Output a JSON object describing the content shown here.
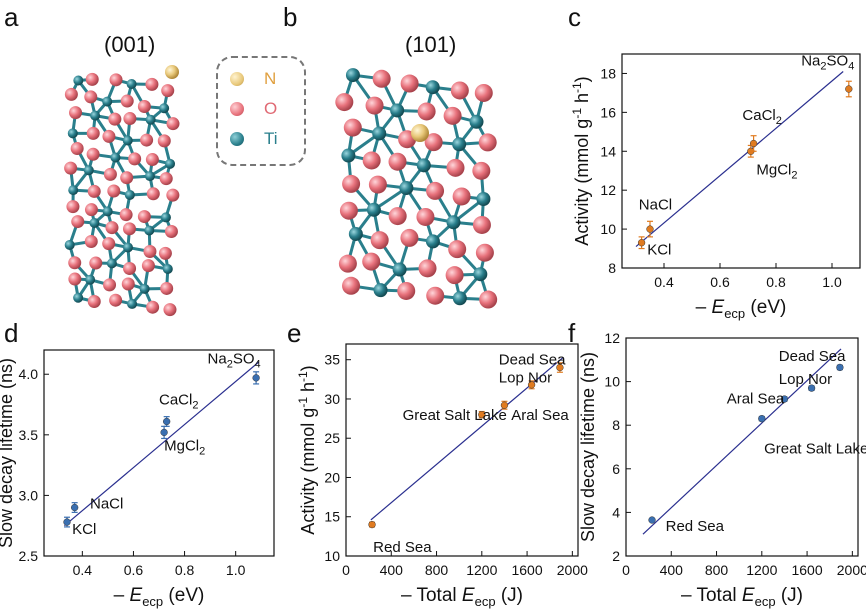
{
  "panel_letters": {
    "a": "a",
    "b": "b",
    "c": "c",
    "d": "d",
    "e": "e",
    "f": "f"
  },
  "structures": {
    "a_facet": "(001)",
    "b_facet": "(101)",
    "legend": [
      {
        "label": "N",
        "color": "#e8c87a",
        "icon": "n-atom-icon"
      },
      {
        "label": "O",
        "color": "#e8727c",
        "icon": "o-atom-icon"
      },
      {
        "label": "Ti",
        "color": "#2a7f8c",
        "icon": "ti-atom-icon"
      }
    ]
  },
  "colors": {
    "fit_line": "#2a2f8f",
    "orange_marker": "#e07b20",
    "blue_marker": "#3a6fb0",
    "axis": "#111111"
  },
  "chart_data": [
    {
      "id": "c",
      "type": "scatter",
      "xlabel_parts": [
        "– ",
        "E",
        "ecp",
        " (eV)"
      ],
      "ylabel_parts": [
        "Activity (mmol g",
        "-1",
        " h",
        "-1",
        ")"
      ],
      "xlim": [
        0.25,
        1.1
      ],
      "ylim": [
        8,
        19
      ],
      "xticks": [
        0.4,
        0.6,
        0.8,
        1.0
      ],
      "xtick_labels": [
        "0.4",
        "0.6",
        "0.8",
        "1.0"
      ],
      "yticks": [
        8,
        10,
        12,
        14,
        16,
        18
      ],
      "ytick_labels": [
        "8",
        "10",
        "12",
        "14",
        "16",
        "18"
      ],
      "marker_color": "orange",
      "points": [
        {
          "x": 0.32,
          "y": 9.3,
          "err": 0.3,
          "label": "KCl",
          "sub": "",
          "label_dx": 0.02,
          "label_dy": -0.6
        },
        {
          "x": 0.35,
          "y": 10.0,
          "err": 0.4,
          "label": "NaCl",
          "sub": "",
          "label_dx": -0.04,
          "label_dy": 1.0
        },
        {
          "x": 0.71,
          "y": 14.0,
          "err": 0.3,
          "label": "MgCl",
          "sub": "2",
          "label_dx": 0.02,
          "label_dy": -1.2
        },
        {
          "x": 0.72,
          "y": 14.4,
          "err": 0.4,
          "label": "CaCl",
          "sub": "2",
          "label_dx": -0.04,
          "label_dy": 1.2
        },
        {
          "x": 1.06,
          "y": 17.2,
          "err": 0.4,
          "label": "Na",
          "sub": "2",
          "sub_tail": "SO",
          "sub2": "4",
          "label_dx": -0.17,
          "label_dy": 1.2
        }
      ],
      "fit": {
        "x": [
          0.3,
          1.04
        ],
        "y": [
          9.1,
          18.1
        ]
      }
    },
    {
      "id": "d",
      "type": "scatter",
      "xlabel_parts": [
        "– ",
        "E",
        "ecp",
        " (eV)"
      ],
      "ylabel_parts": [
        "Slow decay lifetime (ns)"
      ],
      "xlim": [
        0.25,
        1.15
      ],
      "ylim": [
        2.5,
        4.2
      ],
      "xticks": [
        0.4,
        0.6,
        0.8,
        1.0
      ],
      "xtick_labels": [
        "0.4",
        "0.6",
        "0.8",
        "1.0"
      ],
      "yticks": [
        2.5,
        3.0,
        3.5,
        4.0
      ],
      "ytick_labels": [
        "2.5",
        "3.0",
        "3.5",
        "4.0"
      ],
      "marker_color": "blue",
      "points": [
        {
          "x": 0.34,
          "y": 2.78,
          "err": 0.04,
          "label": "KCl",
          "sub": "",
          "label_dx": 0.02,
          "label_dy": -0.1
        },
        {
          "x": 0.37,
          "y": 2.9,
          "err": 0.04,
          "label": "NaCl",
          "sub": "",
          "label_dx": 0.06,
          "label_dy": -0.01
        },
        {
          "x": 0.72,
          "y": 3.52,
          "err": 0.05,
          "label": "MgCl",
          "sub": "2",
          "label_dx": 0.0,
          "label_dy": -0.15
        },
        {
          "x": 0.73,
          "y": 3.61,
          "err": 0.04,
          "label": "CaCl",
          "sub": "2",
          "label_dx": -0.03,
          "label_dy": 0.14
        },
        {
          "x": 1.08,
          "y": 3.97,
          "err": 0.05,
          "label": "Na",
          "sub": "2",
          "sub_tail": "SO",
          "sub2": "4",
          "label_dx": -0.19,
          "label_dy": 0.12
        }
      ],
      "fit": {
        "x": [
          0.33,
          1.09
        ],
        "y": [
          2.75,
          4.1
        ]
      }
    },
    {
      "id": "e",
      "type": "scatter",
      "xlabel_parts": [
        "– Total ",
        "E",
        "ecp",
        " (J)"
      ],
      "ylabel_parts": [
        "Activity (mmol g",
        "-1",
        " h",
        "-1",
        ")"
      ],
      "xlim": [
        0,
        2050
      ],
      "ylim": [
        10,
        37
      ],
      "xticks": [
        0,
        400,
        800,
        1200,
        1600,
        2000
      ],
      "xtick_labels": [
        "0",
        "400",
        "800",
        "1200",
        "1600",
        "2000"
      ],
      "yticks": [
        10,
        15,
        20,
        25,
        30,
        35
      ],
      "ytick_labels": [
        "10",
        "15",
        "20",
        "25",
        "30",
        "35"
      ],
      "marker_color": "orange",
      "points": [
        {
          "x": 230,
          "y": 14.0,
          "err": 0.3,
          "label": "Red Sea",
          "sub": "",
          "label_dx": 10,
          "label_dy": -3.5
        },
        {
          "x": 1200,
          "y": 28.0,
          "err": 0.4,
          "label": "Great Salt Lake",
          "sub": "",
          "label_dx": -700,
          "label_dy": -0.7
        },
        {
          "x": 1400,
          "y": 29.2,
          "err": 0.5,
          "label": "Aral Sea",
          "sub": "",
          "label_dx": 60,
          "label_dy": -1.9
        },
        {
          "x": 1640,
          "y": 31.8,
          "err": 0.5,
          "label": "Lop Nor",
          "sub": "",
          "label_dx": -290,
          "label_dy": 0.3
        },
        {
          "x": 1890,
          "y": 34.0,
          "err": 0.6,
          "label": "Dead Sea",
          "sub": "",
          "label_dx": -540,
          "label_dy": 0.4
        }
      ],
      "fit": {
        "x": [
          220,
          1920
        ],
        "y": [
          14.6,
          35.3
        ]
      }
    },
    {
      "id": "f",
      "type": "scatter",
      "xlabel_parts": [
        "– Total ",
        "E",
        "ecp",
        " (J)"
      ],
      "ylabel_parts": [
        "Slow decay lifetime (ns)"
      ],
      "xlim": [
        0,
        2050
      ],
      "ylim": [
        2,
        12
      ],
      "xticks": [
        0,
        400,
        800,
        1200,
        1600,
        2000
      ],
      "xtick_labels": [
        "0",
        "400",
        "800",
        "1200",
        "1600",
        "2000"
      ],
      "yticks": [
        2,
        4,
        6,
        8,
        10,
        12
      ],
      "ytick_labels": [
        "2",
        "4",
        "6",
        "8",
        "10",
        "12"
      ],
      "marker_color": "blue",
      "points": [
        {
          "x": 230,
          "y": 3.65,
          "err": 0.05,
          "label": "Red Sea",
          "sub": "",
          "label_dx": 120,
          "label_dy": -0.5
        },
        {
          "x": 1200,
          "y": 8.3,
          "err": 0.1,
          "label": "Great Salt Lake",
          "sub": "",
          "label_dx": 20,
          "label_dy": -1.6
        },
        {
          "x": 1400,
          "y": 9.2,
          "err": 0.1,
          "label": "Aral Sea",
          "sub": "",
          "label_dx": -510,
          "label_dy": -0.2
        },
        {
          "x": 1640,
          "y": 9.7,
          "err": 0.1,
          "label": "Lop Nor",
          "sub": "",
          "label_dx": -290,
          "label_dy": 0.2
        },
        {
          "x": 1890,
          "y": 10.65,
          "err": 0.1,
          "label": "Dead Sea",
          "sub": "",
          "label_dx": -540,
          "label_dy": 0.3
        }
      ],
      "fit": {
        "x": [
          150,
          1900
        ],
        "y": [
          3.0,
          11.5
        ]
      }
    }
  ]
}
